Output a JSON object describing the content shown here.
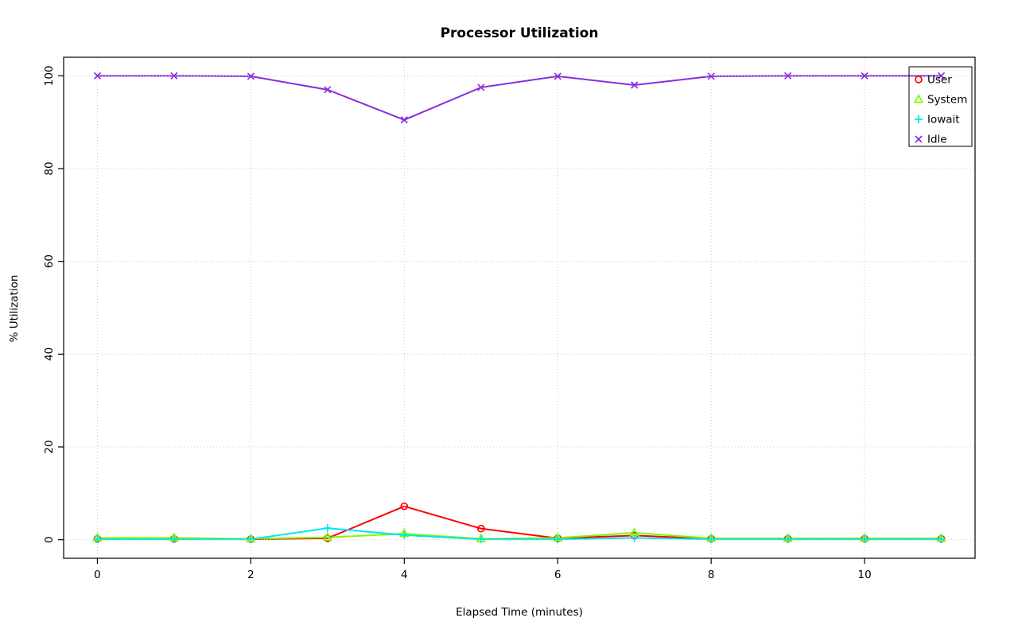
{
  "chart_data": {
    "type": "line",
    "title": "Processor Utilization",
    "xlabel": "Elapsed Time (minutes)",
    "ylabel": "% Utilization",
    "x": [
      0,
      1,
      2,
      3,
      4,
      5,
      6,
      7,
      8,
      9,
      10,
      11
    ],
    "xlim": [
      0,
      11
    ],
    "ylim": [
      0,
      100
    ],
    "xticks": {
      "values": [
        0,
        2,
        4,
        6,
        8,
        10
      ],
      "labels": [
        "0",
        "2",
        "4",
        "6",
        "8",
        "10"
      ]
    },
    "yticks": {
      "values": [
        0,
        20,
        40,
        60,
        80,
        100
      ],
      "labels": [
        "0",
        "20",
        "40",
        "60",
        "80",
        "100"
      ]
    },
    "grid": true,
    "grid_style": "dotted",
    "grid_color": "#c8c8c8",
    "legend_position": "top-right",
    "series": [
      {
        "name": "User",
        "color": "#ff0000",
        "marker": "circle",
        "values": [
          0.2,
          0.2,
          0.1,
          0.3,
          7.2,
          2.4,
          0.3,
          0.9,
          0.2,
          0.2,
          0.2,
          0.2
        ]
      },
      {
        "name": "System",
        "color": "#7cfc00",
        "marker": "triangle",
        "values": [
          0.4,
          0.4,
          0.2,
          0.5,
          1.3,
          0.2,
          0.4,
          1.5,
          0.3,
          0.3,
          0.3,
          0.3
        ]
      },
      {
        "name": "Iowait",
        "color": "#00e5ee",
        "marker": "plus",
        "values": [
          0.1,
          0.1,
          0.1,
          2.5,
          1.0,
          0.1,
          0.1,
          0.4,
          0.1,
          0.1,
          0.1,
          0.1
        ]
      },
      {
        "name": "Idle",
        "color": "#8a2be2",
        "marker": "x",
        "values": [
          100,
          100,
          99.9,
          97.0,
          90.5,
          97.5,
          99.9,
          98.0,
          99.9,
          100,
          100,
          100
        ]
      }
    ]
  }
}
